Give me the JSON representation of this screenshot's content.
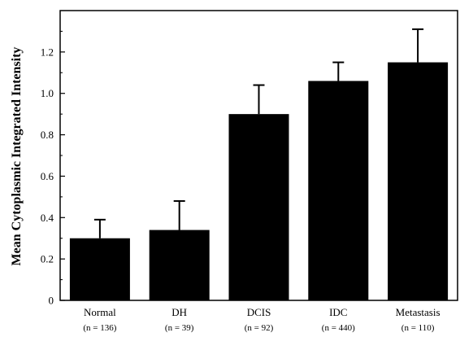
{
  "chart_data": {
    "type": "bar",
    "title": "",
    "xlabel": "",
    "ylabel": "Mean Cytoplasmic Integrated Intensity",
    "ylim": [
      0,
      1.4
    ],
    "yticks": [
      {
        "value": 0,
        "label": "0"
      },
      {
        "value": 0.2,
        "label": "0.2"
      },
      {
        "value": 0.4,
        "label": "0.4"
      },
      {
        "value": 0.6,
        "label": "0.6"
      },
      {
        "value": 0.8,
        "label": "0.8"
      },
      {
        "value": 1.0,
        "label": "1.0"
      },
      {
        "value": 1.2,
        "label": "1.2"
      }
    ],
    "minor_ticks": [
      0.1,
      0.3,
      0.5,
      0.7,
      0.9,
      1.1,
      1.3
    ],
    "categories": [
      "Normal",
      "DH",
      "DCIS",
      "IDC",
      "Metastasis"
    ],
    "sample_sizes": [
      "(n = 136)",
      "(n = 39)",
      "(n = 92)",
      "(n = 440)",
      "(n = 110)"
    ],
    "values": [
      0.3,
      0.34,
      0.9,
      1.06,
      1.15
    ],
    "error_upper": [
      0.39,
      0.48,
      1.04,
      1.15,
      1.31
    ],
    "grid": false,
    "bar_color": "#000000"
  }
}
